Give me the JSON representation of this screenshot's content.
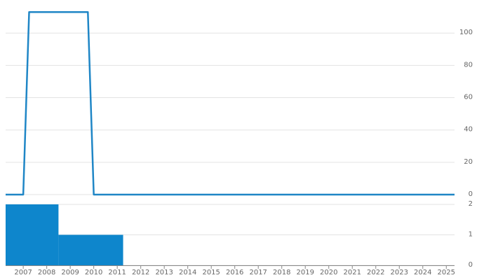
{
  "chart_data": [
    {
      "type": "line",
      "x": [
        2006.25,
        2007,
        2007.25,
        2009.75,
        2010,
        2025.35
      ],
      "values": [
        0,
        0,
        113,
        113,
        0,
        0
      ],
      "color": "#1f86c6",
      "xlim": [
        2006.25,
        2025.35
      ],
      "ylim": [
        0,
        117
      ],
      "yticks": [
        0,
        20,
        40,
        60,
        80,
        100
      ],
      "grid": true
    },
    {
      "type": "histogram",
      "bins": [
        2006.25,
        2008.5,
        2011.25
      ],
      "values": [
        2,
        1
      ],
      "color": "#0e86cc",
      "xlim": [
        2006.25,
        2025.35
      ],
      "ylim": [
        0,
        2.1
      ],
      "yticks": [
        0,
        1,
        2
      ],
      "xticks": [
        2007,
        2008,
        2009,
        2010,
        2011,
        2012,
        2013,
        2014,
        2015,
        2016,
        2017,
        2018,
        2019,
        2020,
        2021,
        2022,
        2023,
        2024,
        2025
      ],
      "grid": true
    }
  ]
}
